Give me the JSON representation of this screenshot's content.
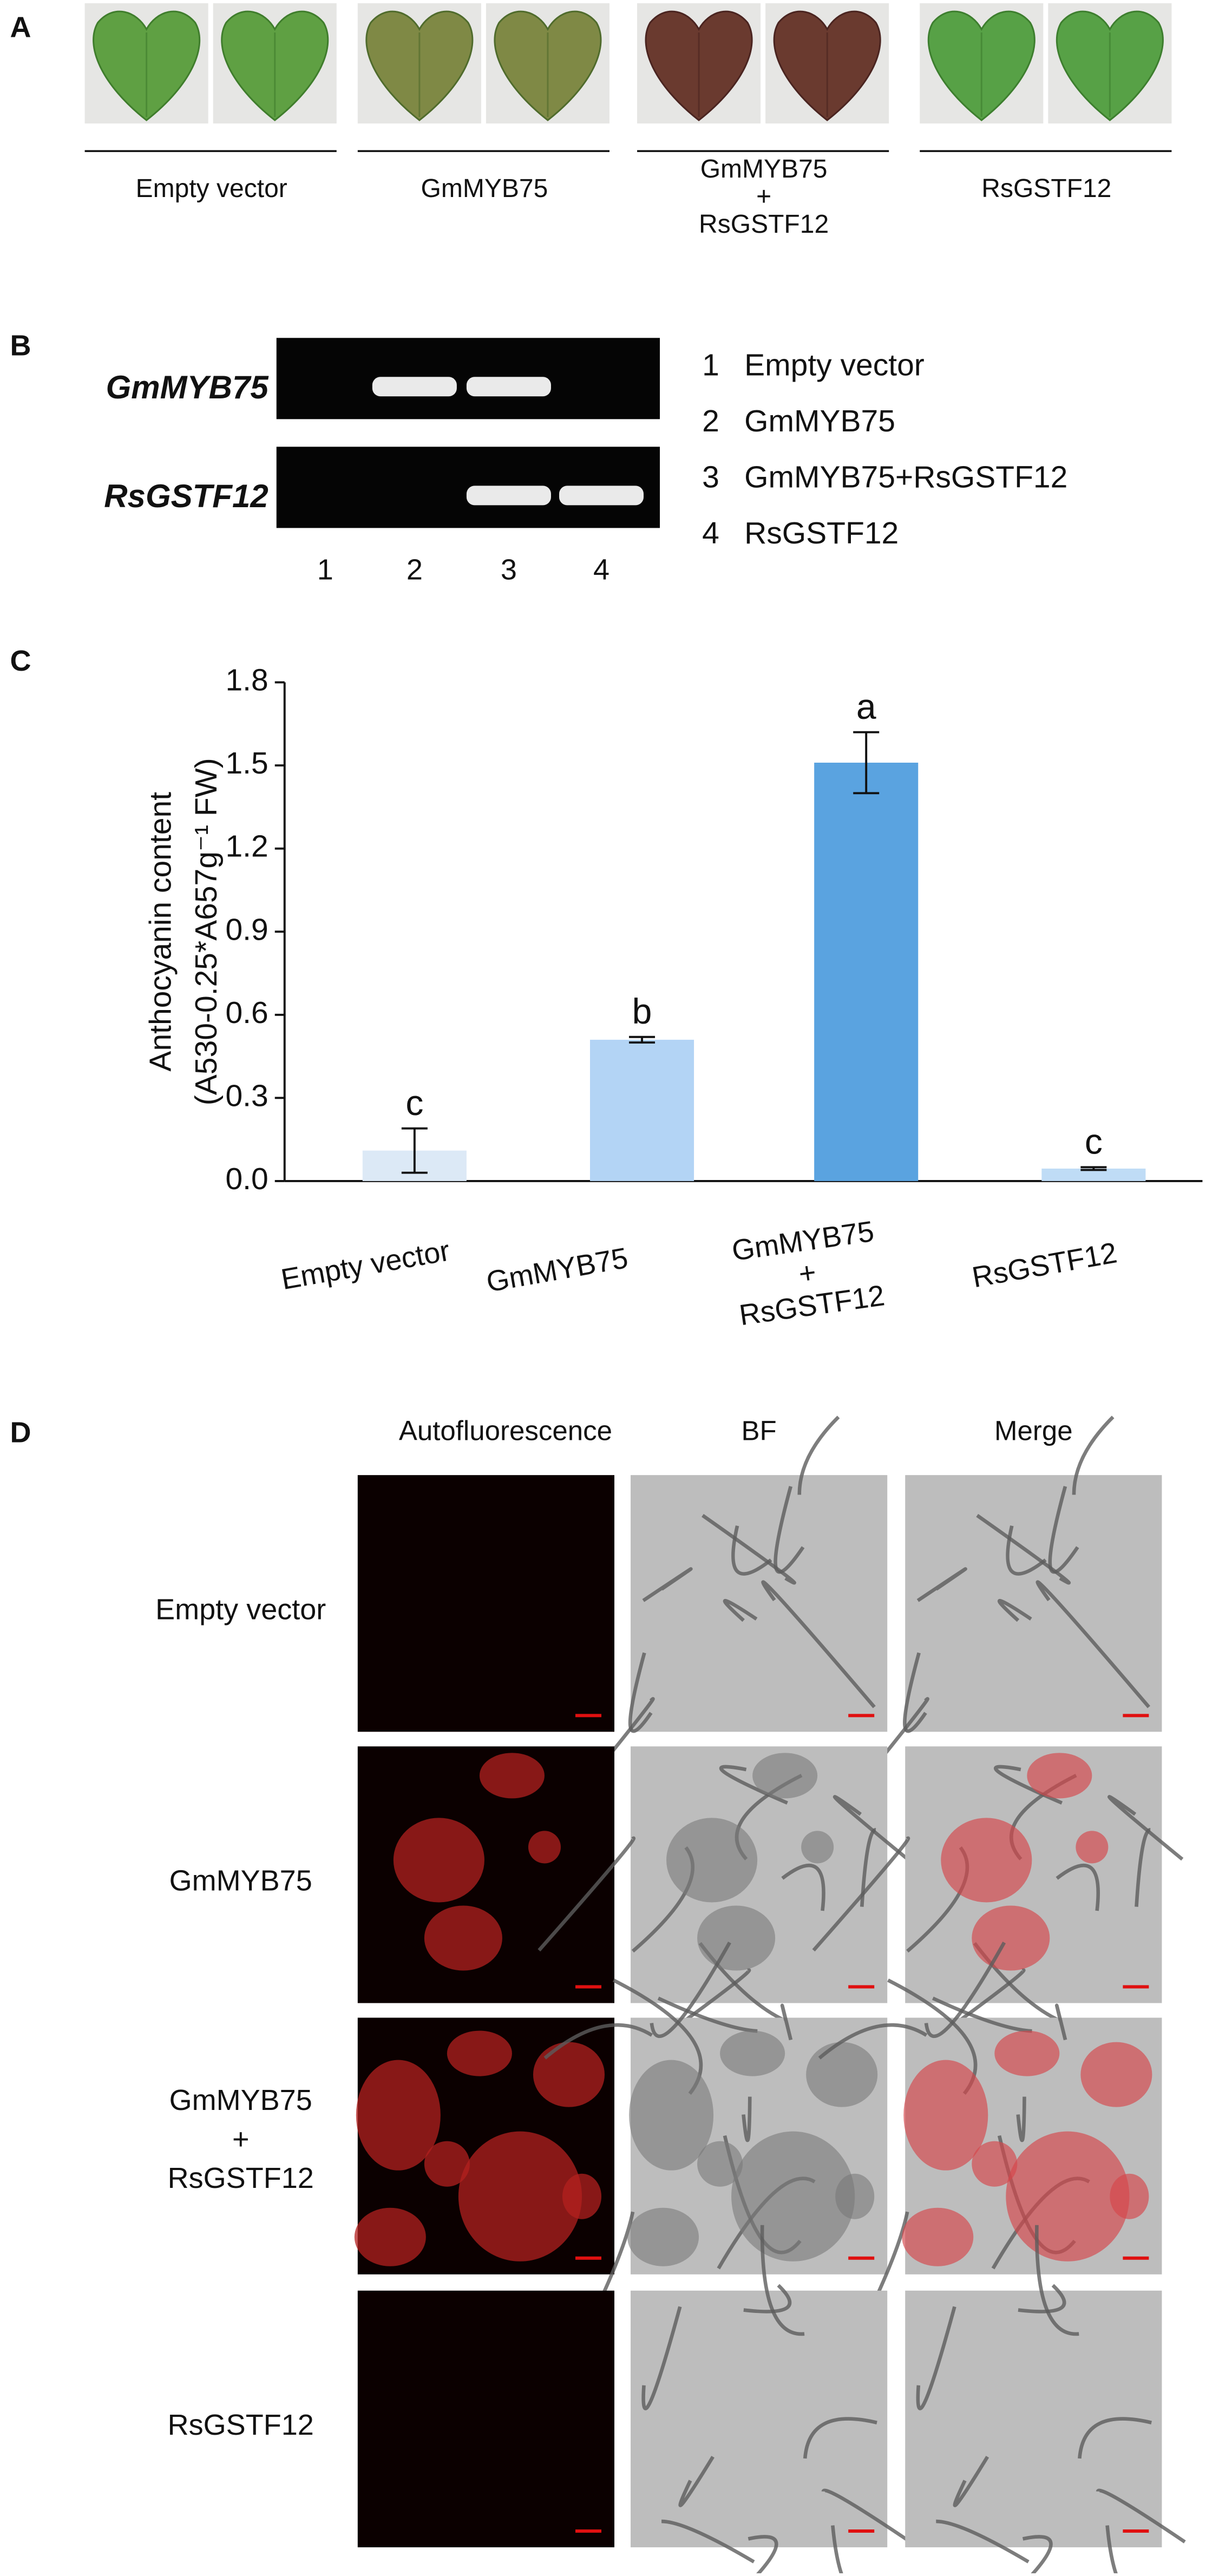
{
  "panel_a": {
    "letter": "A",
    "labels": [
      "Empty vector",
      "GmMYB75",
      [
        "GmMYB75",
        "+",
        "RsGSTF12"
      ],
      "RsGSTF12"
    ]
  },
  "panel_b": {
    "letter": "B",
    "genes": [
      "GmMYB75",
      "RsGSTF12"
    ],
    "lanes": [
      "1",
      "2",
      "3",
      "4"
    ],
    "legend": [
      {
        "number": "1",
        "label": "Empty vector"
      },
      {
        "number": "2",
        "label": "GmMYB75"
      },
      {
        "number": "3",
        "label": "GmMYB75+RsGSTF12"
      },
      {
        "number": "4",
        "label": "RsGSTF12"
      }
    ]
  },
  "chart_data": {
    "type": "bar",
    "letter": "C",
    "y_label": [
      "Anthocyanin content",
      "(A530-0.25*A657g⁻¹ FW)"
    ],
    "categories": [
      "Empty vector",
      "GmMYB75",
      [
        "GmMYB75",
        "+",
        "RsGSTF12"
      ],
      "RsGSTF12"
    ],
    "values": [
      0.11,
      0.51,
      1.51,
      0.045
    ],
    "errors": [
      0.08,
      0.01,
      0.11,
      0.005
    ],
    "annotations": [
      "c",
      "b",
      "a",
      "c"
    ],
    "colors": [
      "#dce9f6",
      "#b3d4f5",
      "#5aa3e0",
      "#bfdcf6"
    ],
    "ylim": [
      0,
      1.8
    ],
    "yticks": [
      {
        "value": 0,
        "label": "0.0"
      },
      0.3,
      0.6,
      0.9,
      1.2,
      1.5,
      1.8
    ]
  },
  "panel_d": {
    "letter": "D",
    "columns": [
      "Autofluorescence",
      "BF",
      "Merge"
    ],
    "rows": [
      "Empty vector",
      "GmMYB75",
      [
        "GmMYB75",
        "+",
        "RsGSTF12"
      ],
      "RsGSTF12"
    ]
  }
}
